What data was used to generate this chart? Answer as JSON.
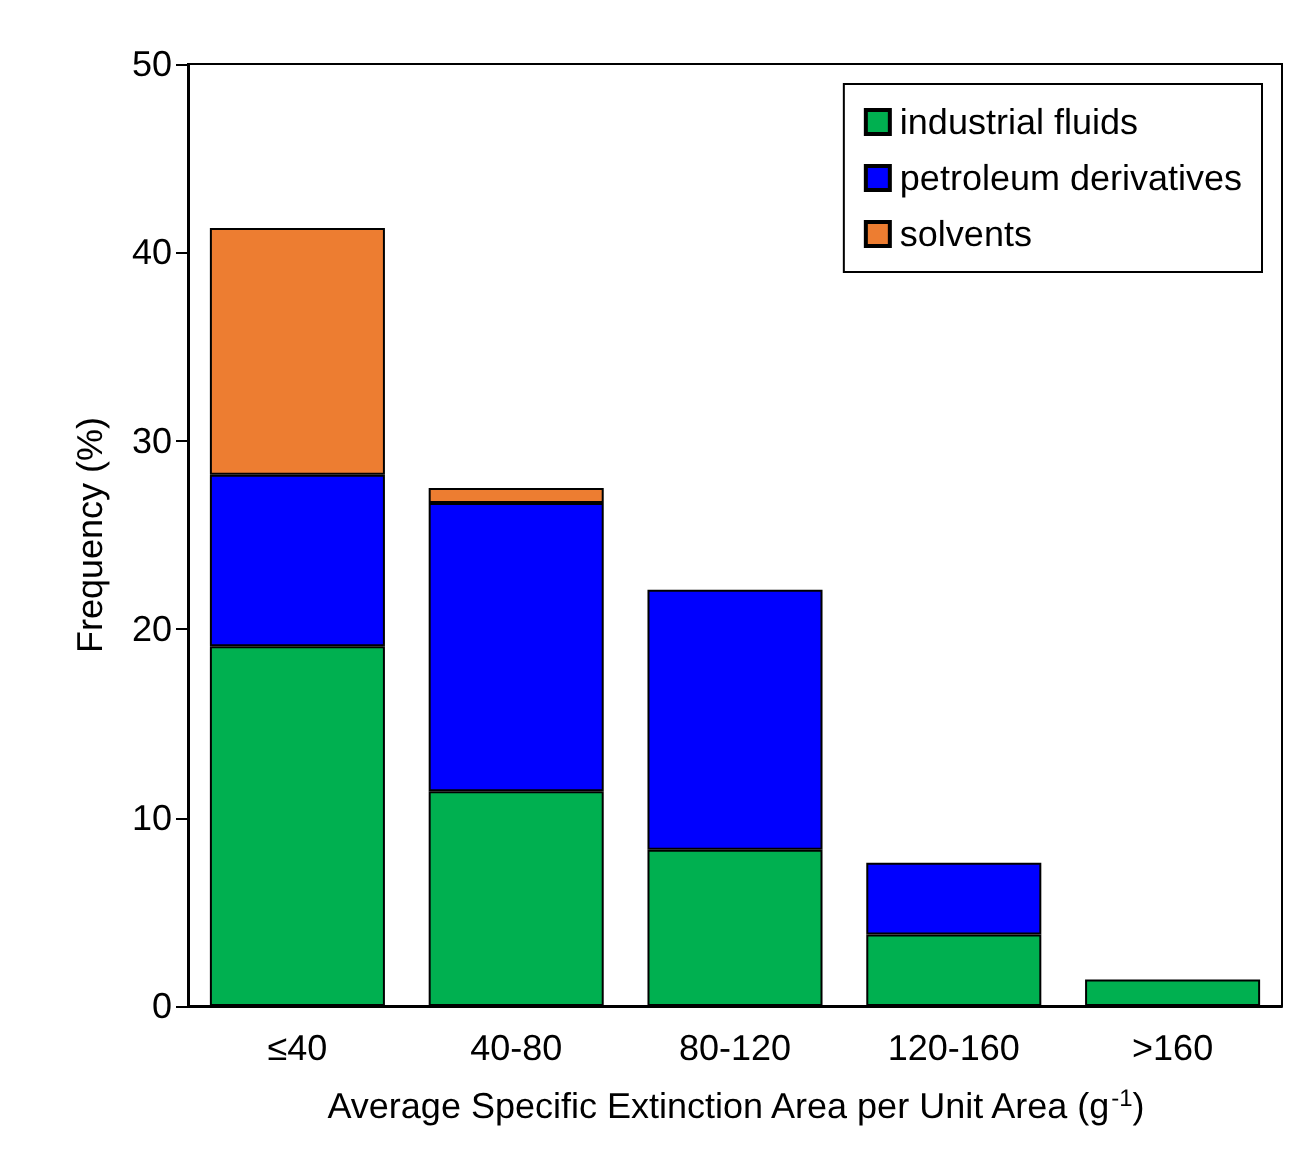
{
  "chart_data": {
    "type": "bar",
    "stacked": true,
    "xlabel": "Average Specific Extinction Area per Unit Area (g$^{-1}$)",
    "ylabel": "Frequency (%)",
    "categories": [
      "≤40",
      "40-80",
      "80-120",
      "120-160",
      ">160"
    ],
    "series": [
      {
        "name": "industrial fluids",
        "color": "#00b050",
        "values": [
          19.1,
          11.4,
          8.3,
          3.8,
          1.4
        ]
      },
      {
        "name": "petroleum derivatives",
        "color": "#0000ff",
        "values": [
          9.1,
          15.3,
          13.8,
          3.8,
          0
        ]
      },
      {
        "name": "solvents",
        "color": "#ed7d31",
        "values": [
          13.1,
          0.8,
          0,
          0,
          0
        ]
      }
    ],
    "ylim": [
      0,
      50
    ],
    "yticks": [
      0,
      10,
      20,
      30,
      40,
      50
    ],
    "grid": false,
    "legend": "top right"
  }
}
